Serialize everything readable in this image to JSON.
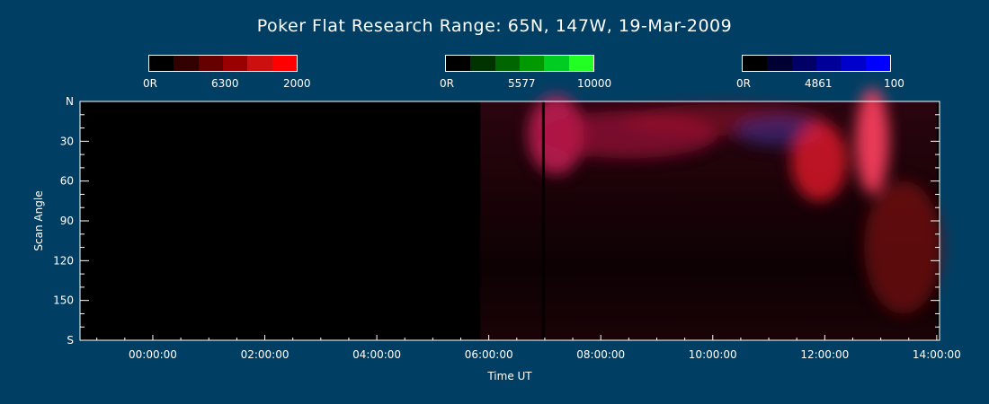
{
  "title": "Poker Flat Research Range: 65N, 147W, 19-Mar-2009",
  "colorbars": [
    {
      "min_label": "0R",
      "wavelength": "6300",
      "max_label": "2000",
      "colors": [
        "#000000",
        "#330000",
        "#660000",
        "#990000",
        "#cc1010",
        "#ff0000"
      ]
    },
    {
      "min_label": "0R",
      "wavelength": "5577",
      "max_label": "10000",
      "colors": [
        "#000000",
        "#003300",
        "#006600",
        "#009900",
        "#00cc22",
        "#22ff22"
      ]
    },
    {
      "min_label": "0R",
      "wavelength": "4861",
      "max_label": "100",
      "colors": [
        "#000000",
        "#000033",
        "#000066",
        "#000099",
        "#0000cc",
        "#0000ff"
      ]
    }
  ],
  "chart_data": {
    "type": "heatmap",
    "xlabel": "Time UT",
    "ylabel": "Scan Angle",
    "x_tick_labels": [
      "00:00:00",
      "02:00:00",
      "04:00:00",
      "06:00:00",
      "08:00:00",
      "10:00:00",
      "12:00:00",
      "14:00:00"
    ],
    "x_tick_hours": [
      0,
      2,
      4,
      6,
      8,
      10,
      12,
      14
    ],
    "x_range_hours": [
      -1.3,
      14.05
    ],
    "y_tick_labels": [
      "N",
      "30",
      "60",
      "90",
      "120",
      "150",
      "S"
    ],
    "y_tick_values": [
      0,
      30,
      60,
      90,
      120,
      150,
      180
    ],
    "y_range": [
      0,
      180
    ],
    "data_start_hour": 5.85,
    "data_end_hour": 14.0,
    "features": [
      {
        "hour": 7.2,
        "angle": 25,
        "dh": 0.5,
        "da": 30,
        "color": "#d0205a",
        "intensity": 0.8
      },
      {
        "hour": 8.5,
        "angle": 25,
        "dh": 1.6,
        "da": 18,
        "color": "#b01040",
        "intensity": 0.6
      },
      {
        "hour": 10.2,
        "angle": 14,
        "dh": 1.8,
        "da": 12,
        "color": "#a01030",
        "intensity": 0.5
      },
      {
        "hour": 11.2,
        "angle": 22,
        "dh": 0.8,
        "da": 12,
        "color": "#3030a0",
        "intensity": 0.5
      },
      {
        "hour": 11.9,
        "angle": 45,
        "dh": 0.5,
        "da": 30,
        "color": "#ff2030",
        "intensity": 0.7
      },
      {
        "hour": 12.85,
        "angle": 30,
        "dh": 0.3,
        "da": 40,
        "color": "#ff4060",
        "intensity": 0.9
      },
      {
        "hour": 13.4,
        "angle": 110,
        "dh": 0.7,
        "da": 50,
        "color": "#901018",
        "intensity": 0.6
      }
    ]
  }
}
